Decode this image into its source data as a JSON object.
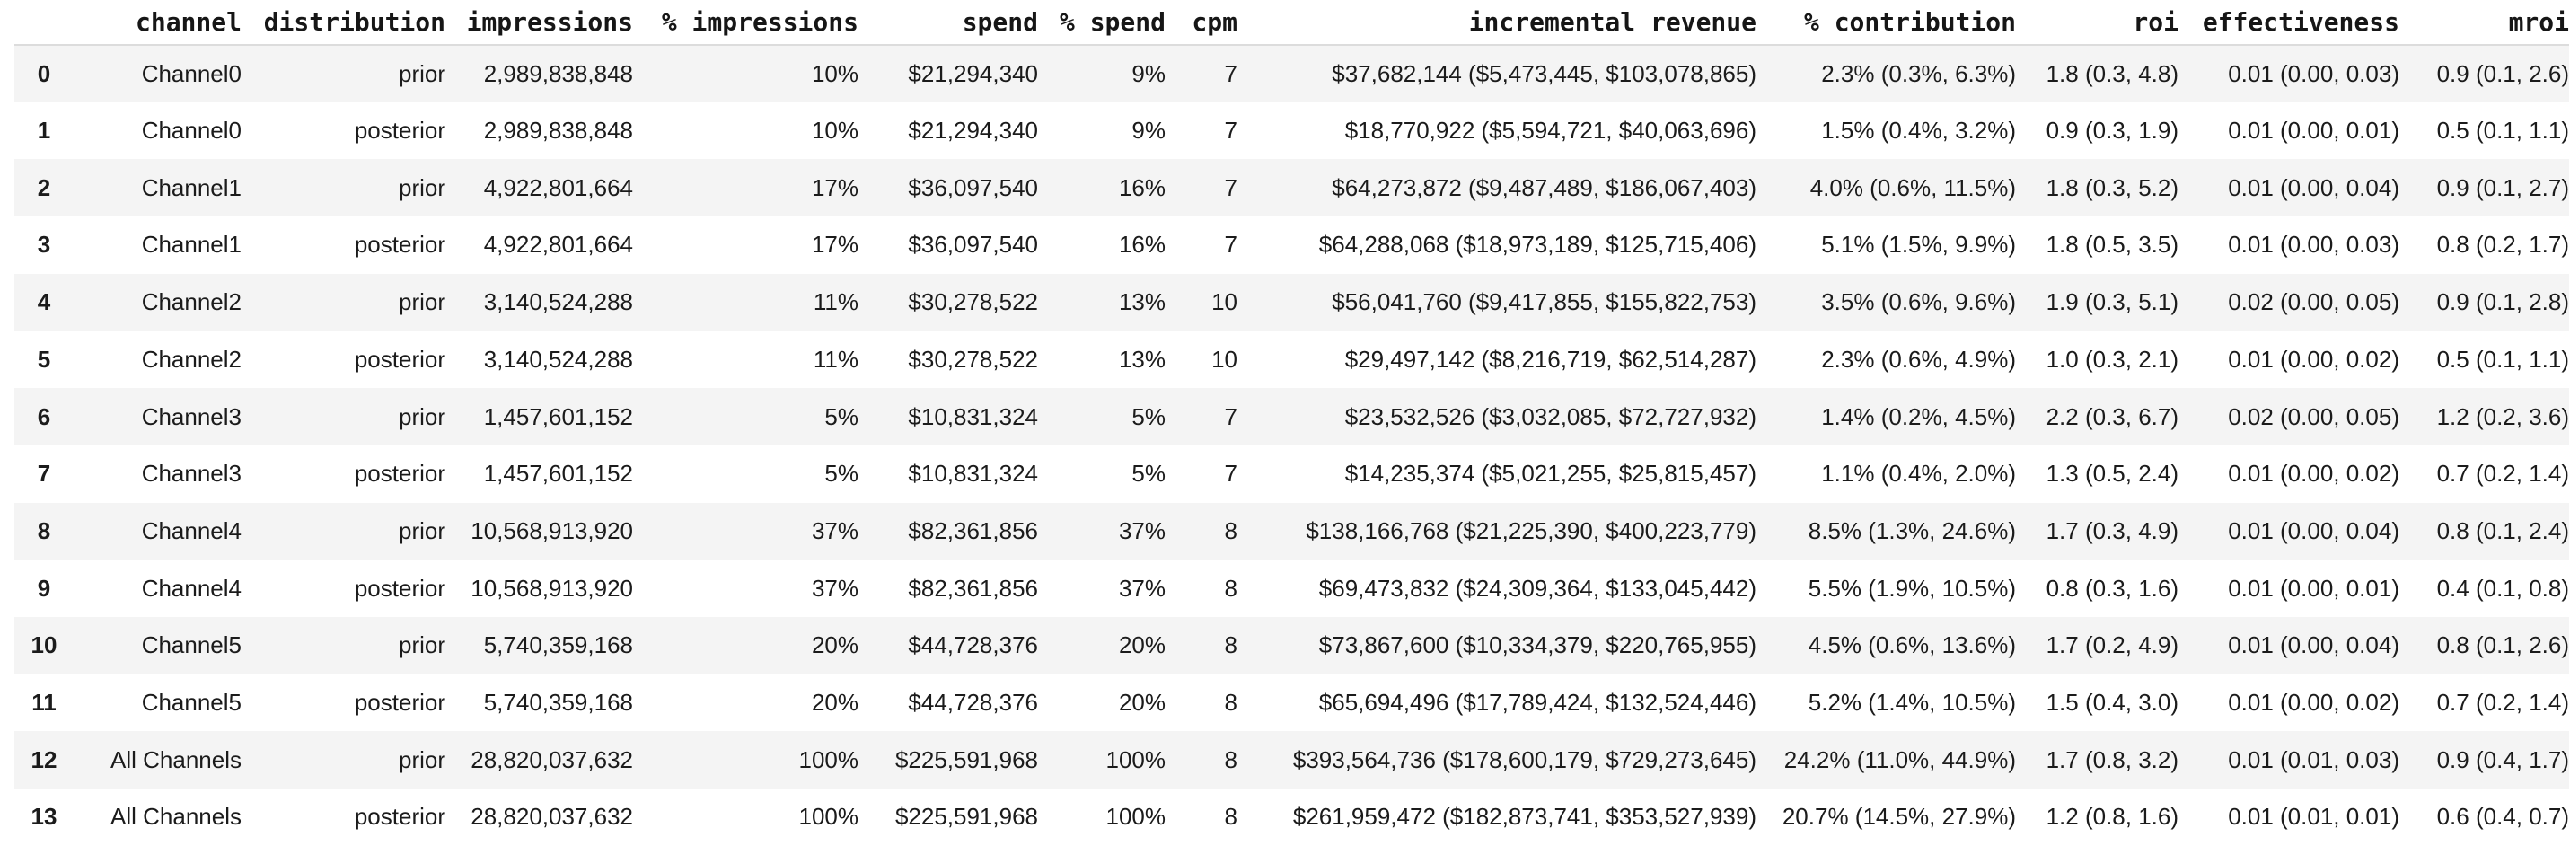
{
  "colors": {
    "background": "#ffffff",
    "row_stripe": "#f4f4f4",
    "header_border": "#dcdcdc",
    "text": "#1b1b1b"
  },
  "table": {
    "columns": [
      {
        "key": "index",
        "label": ""
      },
      {
        "key": "channel",
        "label": "channel"
      },
      {
        "key": "distribution",
        "label": "distribution"
      },
      {
        "key": "impressions",
        "label": "impressions"
      },
      {
        "key": "pct_impressions",
        "label": "% impressions"
      },
      {
        "key": "spend",
        "label": "spend"
      },
      {
        "key": "pct_spend",
        "label": "% spend"
      },
      {
        "key": "cpm",
        "label": "cpm"
      },
      {
        "key": "incremental_revenue",
        "label": "incremental revenue"
      },
      {
        "key": "pct_contribution",
        "label": "% contribution"
      },
      {
        "key": "roi",
        "label": "roi"
      },
      {
        "key": "effectiveness",
        "label": "effectiveness"
      },
      {
        "key": "mroi",
        "label": "mroi"
      }
    ],
    "rows": [
      {
        "index": "0",
        "channel": "Channel0",
        "distribution": "prior",
        "impressions": "2,989,838,848",
        "pct_impressions": "10%",
        "spend": "$21,294,340",
        "pct_spend": "9%",
        "cpm": "7",
        "incremental_revenue": "$37,682,144 ($5,473,445, $103,078,865)",
        "pct_contribution": "2.3% (0.3%, 6.3%)",
        "roi": "1.8 (0.3, 4.8)",
        "effectiveness": "0.01 (0.00, 0.03)",
        "mroi": "0.9 (0.1, 2.6)"
      },
      {
        "index": "1",
        "channel": "Channel0",
        "distribution": "posterior",
        "impressions": "2,989,838,848",
        "pct_impressions": "10%",
        "spend": "$21,294,340",
        "pct_spend": "9%",
        "cpm": "7",
        "incremental_revenue": "$18,770,922 ($5,594,721, $40,063,696)",
        "pct_contribution": "1.5% (0.4%, 3.2%)",
        "roi": "0.9 (0.3, 1.9)",
        "effectiveness": "0.01 (0.00, 0.01)",
        "mroi": "0.5 (0.1, 1.1)"
      },
      {
        "index": "2",
        "channel": "Channel1",
        "distribution": "prior",
        "impressions": "4,922,801,664",
        "pct_impressions": "17%",
        "spend": "$36,097,540",
        "pct_spend": "16%",
        "cpm": "7",
        "incremental_revenue": "$64,273,872 ($9,487,489, $186,067,403)",
        "pct_contribution": "4.0% (0.6%, 11.5%)",
        "roi": "1.8 (0.3, 5.2)",
        "effectiveness": "0.01 (0.00, 0.04)",
        "mroi": "0.9 (0.1, 2.7)"
      },
      {
        "index": "3",
        "channel": "Channel1",
        "distribution": "posterior",
        "impressions": "4,922,801,664",
        "pct_impressions": "17%",
        "spend": "$36,097,540",
        "pct_spend": "16%",
        "cpm": "7",
        "incremental_revenue": "$64,288,068 ($18,973,189, $125,715,406)",
        "pct_contribution": "5.1% (1.5%, 9.9%)",
        "roi": "1.8 (0.5, 3.5)",
        "effectiveness": "0.01 (0.00, 0.03)",
        "mroi": "0.8 (0.2, 1.7)"
      },
      {
        "index": "4",
        "channel": "Channel2",
        "distribution": "prior",
        "impressions": "3,140,524,288",
        "pct_impressions": "11%",
        "spend": "$30,278,522",
        "pct_spend": "13%",
        "cpm": "10",
        "incremental_revenue": "$56,041,760 ($9,417,855, $155,822,753)",
        "pct_contribution": "3.5% (0.6%, 9.6%)",
        "roi": "1.9 (0.3, 5.1)",
        "effectiveness": "0.02 (0.00, 0.05)",
        "mroi": "0.9 (0.1, 2.8)"
      },
      {
        "index": "5",
        "channel": "Channel2",
        "distribution": "posterior",
        "impressions": "3,140,524,288",
        "pct_impressions": "11%",
        "spend": "$30,278,522",
        "pct_spend": "13%",
        "cpm": "10",
        "incremental_revenue": "$29,497,142 ($8,216,719, $62,514,287)",
        "pct_contribution": "2.3% (0.6%, 4.9%)",
        "roi": "1.0 (0.3, 2.1)",
        "effectiveness": "0.01 (0.00, 0.02)",
        "mroi": "0.5 (0.1, 1.1)"
      },
      {
        "index": "6",
        "channel": "Channel3",
        "distribution": "prior",
        "impressions": "1,457,601,152",
        "pct_impressions": "5%",
        "spend": "$10,831,324",
        "pct_spend": "5%",
        "cpm": "7",
        "incremental_revenue": "$23,532,526 ($3,032,085, $72,727,932)",
        "pct_contribution": "1.4% (0.2%, 4.5%)",
        "roi": "2.2 (0.3, 6.7)",
        "effectiveness": "0.02 (0.00, 0.05)",
        "mroi": "1.2 (0.2, 3.6)"
      },
      {
        "index": "7",
        "channel": "Channel3",
        "distribution": "posterior",
        "impressions": "1,457,601,152",
        "pct_impressions": "5%",
        "spend": "$10,831,324",
        "pct_spend": "5%",
        "cpm": "7",
        "incremental_revenue": "$14,235,374 ($5,021,255, $25,815,457)",
        "pct_contribution": "1.1% (0.4%, 2.0%)",
        "roi": "1.3 (0.5, 2.4)",
        "effectiveness": "0.01 (0.00, 0.02)",
        "mroi": "0.7 (0.2, 1.4)"
      },
      {
        "index": "8",
        "channel": "Channel4",
        "distribution": "prior",
        "impressions": "10,568,913,920",
        "pct_impressions": "37%",
        "spend": "$82,361,856",
        "pct_spend": "37%",
        "cpm": "8",
        "incremental_revenue": "$138,166,768 ($21,225,390, $400,223,779)",
        "pct_contribution": "8.5% (1.3%, 24.6%)",
        "roi": "1.7 (0.3, 4.9)",
        "effectiveness": "0.01 (0.00, 0.04)",
        "mroi": "0.8 (0.1, 2.4)"
      },
      {
        "index": "9",
        "channel": "Channel4",
        "distribution": "posterior",
        "impressions": "10,568,913,920",
        "pct_impressions": "37%",
        "spend": "$82,361,856",
        "pct_spend": "37%",
        "cpm": "8",
        "incremental_revenue": "$69,473,832 ($24,309,364, $133,045,442)",
        "pct_contribution": "5.5% (1.9%, 10.5%)",
        "roi": "0.8 (0.3, 1.6)",
        "effectiveness": "0.01 (0.00, 0.01)",
        "mroi": "0.4 (0.1, 0.8)"
      },
      {
        "index": "10",
        "channel": "Channel5",
        "distribution": "prior",
        "impressions": "5,740,359,168",
        "pct_impressions": "20%",
        "spend": "$44,728,376",
        "pct_spend": "20%",
        "cpm": "8",
        "incremental_revenue": "$73,867,600 ($10,334,379, $220,765,955)",
        "pct_contribution": "4.5% (0.6%, 13.6%)",
        "roi": "1.7 (0.2, 4.9)",
        "effectiveness": "0.01 (0.00, 0.04)",
        "mroi": "0.8 (0.1, 2.6)"
      },
      {
        "index": "11",
        "channel": "Channel5",
        "distribution": "posterior",
        "impressions": "5,740,359,168",
        "pct_impressions": "20%",
        "spend": "$44,728,376",
        "pct_spend": "20%",
        "cpm": "8",
        "incremental_revenue": "$65,694,496 ($17,789,424, $132,524,446)",
        "pct_contribution": "5.2% (1.4%, 10.5%)",
        "roi": "1.5 (0.4, 3.0)",
        "effectiveness": "0.01 (0.00, 0.02)",
        "mroi": "0.7 (0.2, 1.4)"
      },
      {
        "index": "12",
        "channel": "All Channels",
        "distribution": "prior",
        "impressions": "28,820,037,632",
        "pct_impressions": "100%",
        "spend": "$225,591,968",
        "pct_spend": "100%",
        "cpm": "8",
        "incremental_revenue": "$393,564,736 ($178,600,179, $729,273,645)",
        "pct_contribution": "24.2% (11.0%, 44.9%)",
        "roi": "1.7 (0.8, 3.2)",
        "effectiveness": "0.01 (0.01, 0.03)",
        "mroi": "0.9 (0.4, 1.7)"
      },
      {
        "index": "13",
        "channel": "All Channels",
        "distribution": "posterior",
        "impressions": "28,820,037,632",
        "pct_impressions": "100%",
        "spend": "$225,591,968",
        "pct_spend": "100%",
        "cpm": "8",
        "incremental_revenue": "$261,959,472 ($182,873,741, $353,527,939)",
        "pct_contribution": "20.7% (14.5%, 27.9%)",
        "roi": "1.2 (0.8, 1.6)",
        "effectiveness": "0.01 (0.01, 0.01)",
        "mroi": "0.6 (0.4, 0.7)"
      }
    ]
  }
}
